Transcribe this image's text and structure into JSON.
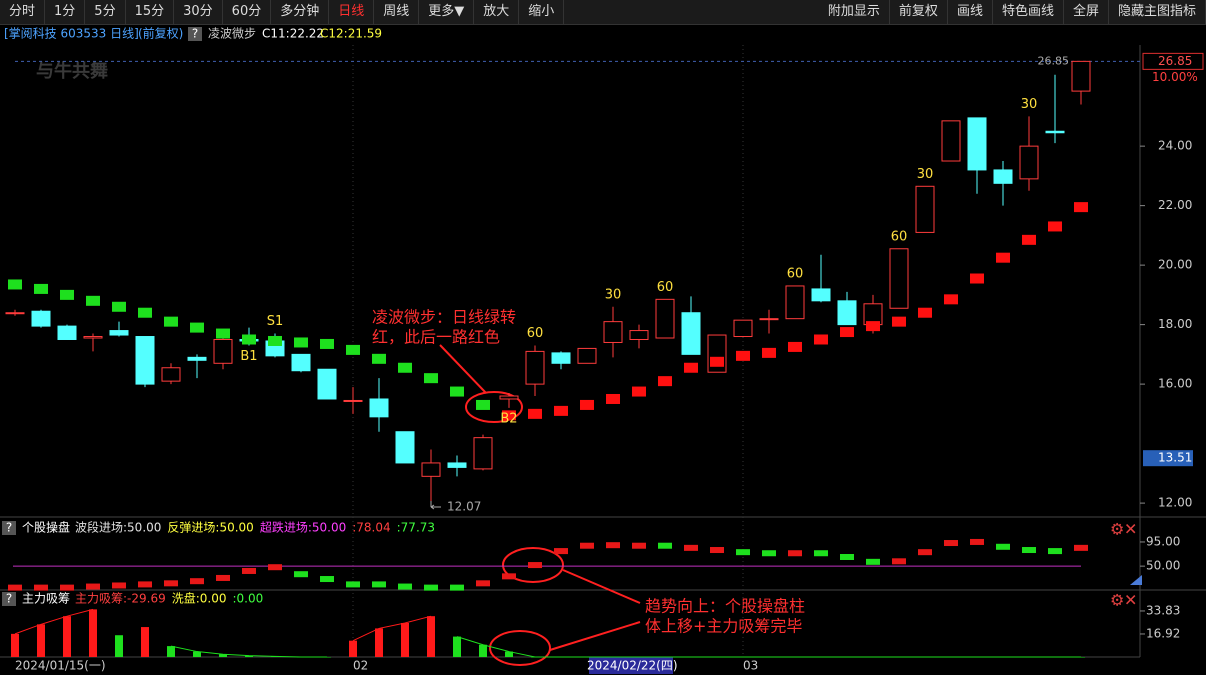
{
  "toolbar": {
    "left": [
      "分时",
      "1分",
      "5分",
      "15分",
      "30分",
      "60分",
      "多分钟",
      "日线",
      "周线",
      "更多▼",
      "放大",
      "缩小"
    ],
    "active": 7,
    "right": [
      "附加显示",
      "前复权",
      "画线",
      "特色画线",
      "全屏",
      "隐藏主图指标"
    ]
  },
  "header": {
    "stock": "[掌阅科技 603533 日线]",
    "adjust": "(前复权)",
    "help": "?",
    "indicator": "凌波微步",
    "c1": "C11:22.22",
    "c2": "C12:21.59"
  },
  "watermark": "与牛共舞",
  "notes": [
    {
      "lines": [
        "凌波微步：日线绿转",
        "红，此后一路红色"
      ]
    },
    {
      "lines": [
        "趋势向上：个股操盘柱",
        "体上移+主力吸筹完毕"
      ]
    }
  ],
  "chart_data": [
    {
      "type": "candlestick",
      "up_color": "#ff3c3c",
      "down_color": "#54ffff",
      "categories": [
        "2024/01/15(一)",
        null,
        null,
        null,
        null,
        null,
        null,
        null,
        null,
        null,
        null,
        null,
        null,
        "02",
        null,
        null,
        null,
        null,
        null,
        null,
        null,
        null,
        "2024/02/22(四)",
        null,
        null,
        null,
        null,
        null,
        "03",
        null,
        null,
        null,
        null,
        null,
        null,
        null,
        null,
        null,
        null,
        null,
        null,
        null
      ],
      "open": [
        18.4,
        18.45,
        17.95,
        17.55,
        17.8,
        17.6,
        16.1,
        16.9,
        16.7,
        17.5,
        17.45,
        17.0,
        16.5,
        15.45,
        15.5,
        14.4,
        12.9,
        13.35,
        13.15,
        15.5,
        16.0,
        17.05,
        16.7,
        17.4,
        17.5,
        17.55,
        18.4,
        16.4,
        17.6,
        18.2,
        18.2,
        19.2,
        18.8,
        18.0,
        18.55,
        21.1,
        23.5,
        24.95,
        23.2,
        22.9,
        24.5,
        25.85
      ],
      "high": [
        18.5,
        18.5,
        18.0,
        17.7,
        18.1,
        17.6,
        16.7,
        17.0,
        17.7,
        17.9,
        17.7,
        17.0,
        16.5,
        15.9,
        16.2,
        14.4,
        13.8,
        13.6,
        14.3,
        15.7,
        17.3,
        17.1,
        17.2,
        18.6,
        18.0,
        18.85,
        18.95,
        17.65,
        18.15,
        18.5,
        19.3,
        20.35,
        19.1,
        19.0,
        20.55,
        22.65,
        24.85,
        24.95,
        23.5,
        25.0,
        26.4,
        26.85
      ],
      "low": [
        18.3,
        17.9,
        17.5,
        17.1,
        17.6,
        15.9,
        16.0,
        16.2,
        16.5,
        17.3,
        16.9,
        16.4,
        15.5,
        15.0,
        14.4,
        13.35,
        12.07,
        12.9,
        13.1,
        15.2,
        15.6,
        16.5,
        16.7,
        16.9,
        17.2,
        17.55,
        17.0,
        16.4,
        17.6,
        17.7,
        18.2,
        18.75,
        18.0,
        17.7,
        18.55,
        21.1,
        23.5,
        22.4,
        22.0,
        22.5,
        24.1,
        25.4
      ],
      "close": [
        18.4,
        17.95,
        17.5,
        17.6,
        17.65,
        16.0,
        16.55,
        16.8,
        17.5,
        17.45,
        16.95,
        16.45,
        15.5,
        15.45,
        14.9,
        13.35,
        13.35,
        13.2,
        14.2,
        15.6,
        17.1,
        16.7,
        17.2,
        18.1,
        17.8,
        18.85,
        17.0,
        17.65,
        18.15,
        18.2,
        19.3,
        18.8,
        18.0,
        18.7,
        20.55,
        22.65,
        24.85,
        23.2,
        22.75,
        24.0,
        24.45,
        26.85
      ],
      "series": [
        {
          "name": "green",
          "color": "#1ee01e",
          "values": [
            19.35,
            19.2,
            19.0,
            18.8,
            18.6,
            18.4,
            18.1,
            17.9,
            17.7,
            17.5,
            17.45,
            17.4,
            17.35,
            17.15,
            16.85,
            16.55,
            16.2,
            15.75,
            15.3,
            null,
            null,
            null,
            null,
            null,
            null,
            null,
            null,
            null,
            null,
            null,
            null,
            null,
            null,
            null,
            null,
            null,
            null,
            null,
            null,
            null,
            null,
            null
          ]
        },
        {
          "name": "red",
          "color": "#ff1010",
          "values": [
            null,
            null,
            null,
            null,
            null,
            null,
            null,
            null,
            null,
            null,
            null,
            null,
            null,
            null,
            null,
            null,
            null,
            null,
            null,
            14.95,
            15.0,
            15.1,
            15.3,
            15.5,
            15.75,
            16.1,
            16.55,
            16.75,
            16.95,
            17.05,
            17.25,
            17.5,
            17.75,
            17.95,
            18.1,
            18.4,
            18.85,
            19.55,
            20.25,
            20.85,
            21.3,
            21.95
          ]
        }
      ],
      "annotations": [
        {
          "index": 9,
          "text": "B1",
          "position": "below"
        },
        {
          "index": 10,
          "text": "S1",
          "position": "above"
        },
        {
          "index": 19,
          "text": "B2",
          "position": "below"
        },
        {
          "index": 20,
          "text": "60",
          "position": "above"
        },
        {
          "index": 23,
          "text": "30",
          "position": "above"
        },
        {
          "index": 25,
          "text": "60",
          "position": "above"
        },
        {
          "index": 30,
          "text": "60",
          "position": "above"
        },
        {
          "index": 34,
          "text": "60",
          "position": "above"
        },
        {
          "index": 35,
          "text": "30",
          "position": "above"
        },
        {
          "index": 39,
          "text": "30",
          "position": "above"
        }
      ],
      "low_mark": {
        "index": 16,
        "value": 12.07,
        "label": "12.07"
      },
      "high_mark": {
        "index": 41,
        "value": 26.85,
        "label": "26.85"
      },
      "pct_label": "10.00%",
      "cursor": {
        "index": 22,
        "value": 13.51,
        "label": "13.51"
      },
      "ylim": [
        11.6,
        27.4
      ],
      "yticks": [
        {
          "value": 24,
          "label": "24.00"
        },
        {
          "value": 22,
          "label": "22.00"
        },
        {
          "value": 20,
          "label": "20.00"
        },
        {
          "value": 18,
          "label": "18.00"
        },
        {
          "value": 16,
          "label": "16.00"
        },
        {
          "value": 12,
          "label": "12.00"
        }
      ]
    },
    {
      "type": "bar",
      "title": "个股操盘",
      "legend": [
        {
          "text": "波段进场:50.00",
          "color": "#e0e0e0"
        },
        {
          "text": "反弹进场:50.00",
          "color": "#ffff40"
        },
        {
          "text": "超跌进场:50.00",
          "color": "#ff40ff"
        },
        {
          "text": ":78.04",
          "color": "#ff4040"
        },
        {
          "text": ":77.73",
          "color": "#40ff40"
        }
      ],
      "level": 50,
      "level_color": "#c030c0",
      "series": [
        {
          "name": "red",
          "color": "#e81818",
          "values": [
            10,
            10,
            10,
            12,
            14,
            16,
            18,
            22,
            28,
            41,
            48,
            null,
            null,
            null,
            null,
            null,
            null,
            null,
            18,
            31,
            52,
            78,
            88,
            89,
            88,
            null,
            84,
            80,
            null,
            null,
            74,
            null,
            null,
            null,
            59,
            76,
            93,
            95,
            null,
            null,
            null,
            84
          ]
        },
        {
          "name": "green",
          "color": "#1ee01e",
          "values": [
            null,
            null,
            null,
            null,
            null,
            null,
            null,
            null,
            null,
            null,
            null,
            35,
            26,
            16,
            16,
            12,
            10,
            10,
            null,
            null,
            null,
            null,
            null,
            null,
            null,
            88,
            null,
            null,
            76,
            74,
            null,
            74,
            67,
            58,
            null,
            null,
            null,
            null,
            86,
            80,
            78,
            null
          ]
        }
      ],
      "ylim": [
        0,
        134
      ],
      "yticks": [
        {
          "value": 95,
          "label": "95.00"
        },
        {
          "value": 50,
          "label": "50.00"
        }
      ]
    },
    {
      "type": "bar",
      "title": "主力吸筹",
      "legend": [
        {
          "text": "主力吸筹:-29.69",
          "color": "#ff4040"
        },
        {
          "text": "洗盘:0.00",
          "color": "#ffff40"
        },
        {
          "text": ":0.00",
          "color": "#40ff40"
        }
      ],
      "series": [
        {
          "name": "red",
          "color": "#ff1a1a",
          "values": [
            17,
            24,
            30,
            35,
            null,
            22,
            null,
            null,
            null,
            null,
            null,
            null,
            null,
            12,
            21,
            25,
            30,
            null,
            null,
            null,
            null,
            null,
            null,
            null,
            null,
            null,
            null,
            null,
            null,
            null,
            null,
            null,
            null,
            null,
            null,
            null,
            null,
            null,
            null,
            null,
            null,
            null
          ]
        },
        {
          "name": "green",
          "color": "#1ee01e",
          "values": [
            null,
            null,
            null,
            null,
            16,
            null,
            8,
            4,
            2,
            1,
            0.5,
            0,
            0,
            null,
            null,
            null,
            null,
            15,
            9,
            4,
            0,
            0,
            0,
            0,
            0,
            0,
            0,
            0,
            0,
            0,
            0,
            0,
            0,
            0,
            0,
            0,
            0,
            0,
            0,
            0,
            0,
            0
          ]
        }
      ],
      "ylim": [
        0,
        48.5
      ],
      "yticks": [
        {
          "value": 33.83,
          "label": "33.83"
        },
        {
          "value": 16.92,
          "label": "16.92"
        }
      ]
    }
  ]
}
